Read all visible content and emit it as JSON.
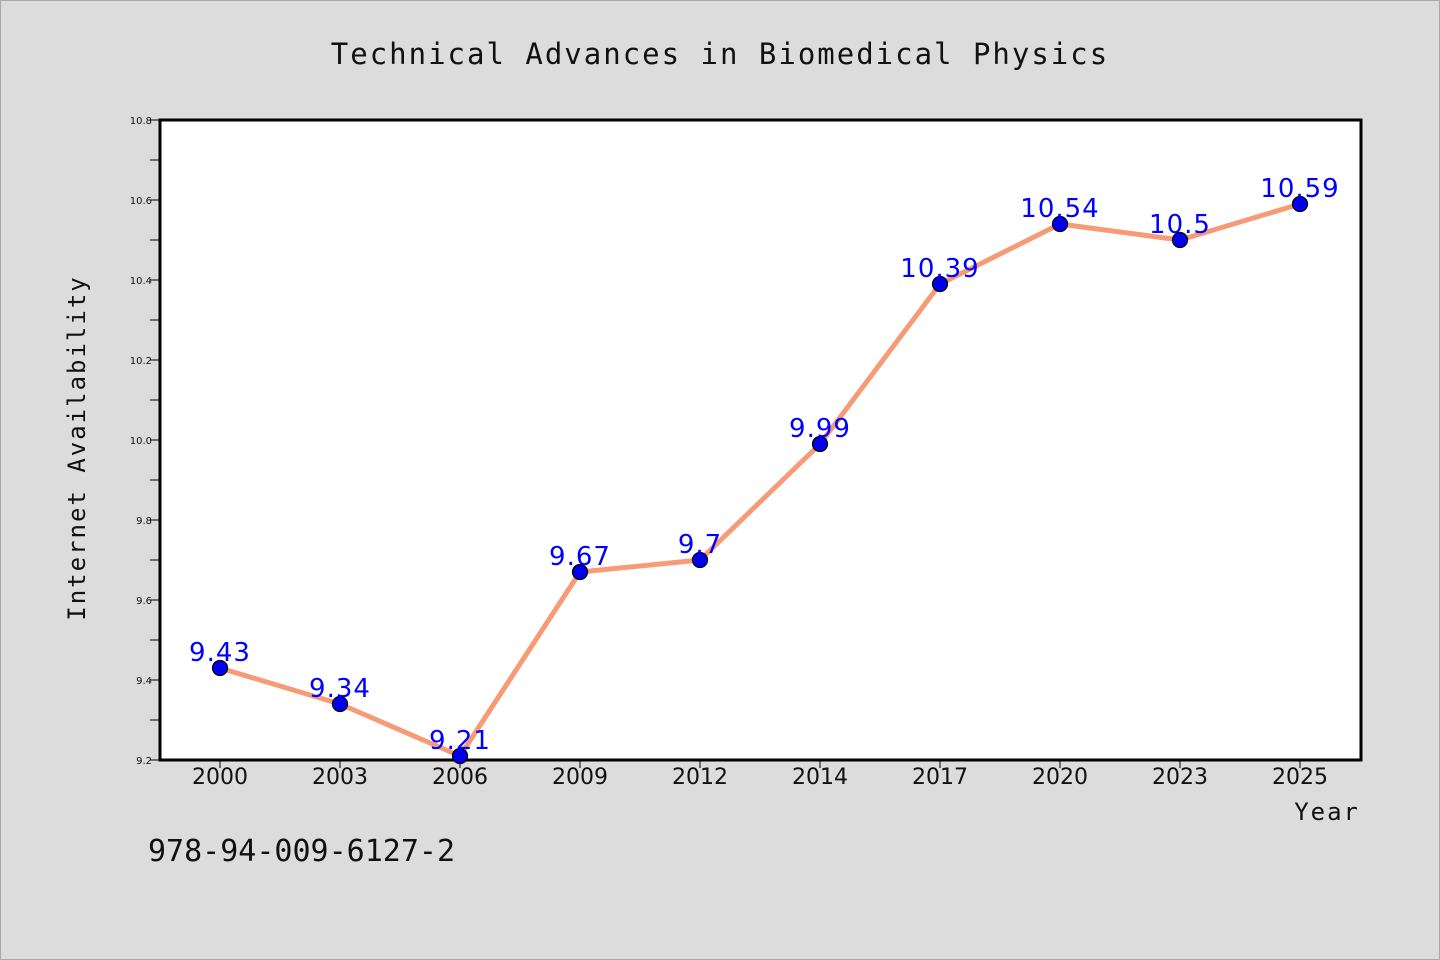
{
  "chart_data": {
    "type": "line",
    "title": "Technical Advances in Biomedical Physics",
    "xlabel": "Year",
    "ylabel": "Internet Availability",
    "categories": [
      "2000",
      "2003",
      "2006",
      "2009",
      "2012",
      "2014",
      "2017",
      "2020",
      "2023",
      "2025"
    ],
    "values": [
      9.43,
      9.34,
      9.21,
      9.67,
      9.7,
      9.99,
      10.39,
      10.54,
      10.5,
      10.59
    ],
    "data_labels": [
      "9.43",
      "9.34",
      "9.21",
      "9.67",
      "9.7",
      "9.99",
      "10.39",
      "10.54",
      "10.5",
      "10.59"
    ],
    "ylim": [
      9.2,
      10.8
    ],
    "yticks": [
      "9.2",
      "9.4",
      "9.6",
      "9.8",
      "10.0",
      "10.2",
      "10.4",
      "10.6",
      "10.8"
    ],
    "grid": false,
    "legend": "none",
    "colors": {
      "line": "#f79b77",
      "marker": "#0000ee",
      "label": "#0000ff",
      "background": "#dcdcdc",
      "plot": "#ffffff"
    }
  },
  "annotation": {
    "isbn": "978-94-009-6127-2"
  }
}
